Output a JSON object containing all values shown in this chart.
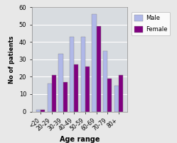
{
  "categories": [
    "<20",
    "20-29",
    "30-39",
    "40-49",
    "50-59",
    "60-69",
    "70-79",
    "80+"
  ],
  "male_values": [
    1,
    16,
    33,
    43,
    43,
    56,
    35,
    15
  ],
  "female_values": [
    1,
    21,
    17,
    27,
    26,
    49,
    19,
    21
  ],
  "male_color": "#b0b8e8",
  "female_color": "#800080",
  "xlabel": "Age range",
  "ylabel": "No of patients",
  "ylim": [
    0,
    60
  ],
  "yticks": [
    0,
    10,
    20,
    30,
    40,
    50,
    60
  ],
  "legend_labels": [
    "Male",
    "Female"
  ],
  "plot_bg_color": "#d8dce0",
  "fig_bg_color": "#e8e8e8",
  "grid_color": "#ffffff"
}
